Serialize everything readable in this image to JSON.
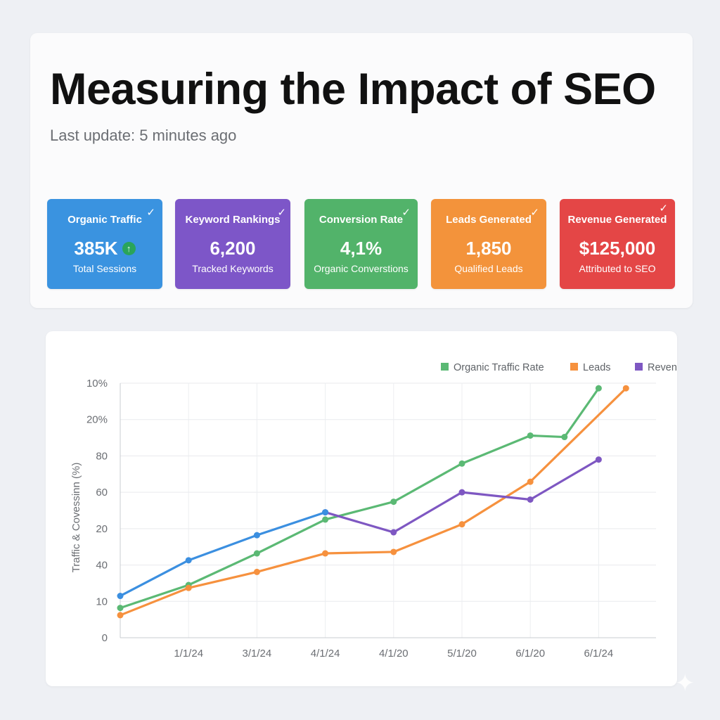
{
  "header": {
    "title": "Measuring the Impact of SEO",
    "last_update": "Last update: 5 minutes ago"
  },
  "kpis": [
    {
      "title": "Organic Traffic",
      "value": "385K",
      "sub": "Total Sessions",
      "color": "#3a93e0",
      "check": "✓",
      "trend_icon": "↑"
    },
    {
      "title": "Keyword Rankings",
      "value": "6,200",
      "sub": "Tracked Keywords",
      "color": "#7d56c8",
      "check": "✓"
    },
    {
      "title": "Conversion Rate",
      "value": "4,1%",
      "sub": "Organic Converstions",
      "color": "#52b36a",
      "check": "✓"
    },
    {
      "title": "Leads Generated",
      "value": "1,850",
      "sub": "Qualified Leads",
      "color": "#f3933b",
      "check": "✓"
    },
    {
      "title": "Revenue Generated",
      "value": "$125,000",
      "sub": "Attributed to SEO",
      "color": "#e44646",
      "check": "✓"
    }
  ],
  "chart_data": {
    "type": "line",
    "ylabel": "Traffic & Covessinn (%)",
    "y_tick_labels": [
      "0",
      "10",
      "40",
      "20",
      "60",
      "80",
      "20%",
      "10%"
    ],
    "x_tick_labels": [
      "1/1/24",
      "3/1/24",
      "4/1/24",
      "4/1/20",
      "5/1/20",
      "6/1/20",
      "6/1/24"
    ],
    "x_domain": [
      0,
      7.6
    ],
    "y_domain": [
      0,
      7
    ],
    "legend_position": "top-right",
    "grid": true,
    "series": [
      {
        "name": "Organic Traffic Rate",
        "color": "#5bb974",
        "x": [
          0,
          1,
          2,
          3,
          4,
          5,
          6,
          6.5,
          7
        ],
        "y": [
          0.82,
          1.45,
          2.32,
          3.25,
          3.74,
          4.79,
          5.56,
          5.52,
          6.86
        ]
      },
      {
        "name": "Leads",
        "color": "#f6913e",
        "x": [
          0,
          1,
          2,
          3,
          4,
          5,
          6,
          7.4
        ],
        "y": [
          0.62,
          1.37,
          1.81,
          2.32,
          2.36,
          3.12,
          4.29,
          6.86
        ]
      },
      {
        "name": "Revenue",
        "color": "#7e57c2",
        "x": [
          3,
          4,
          5,
          6,
          7
        ],
        "y": [
          3.45,
          2.9,
          4.0,
          3.8,
          4.9
        ]
      },
      {
        "name": "Organic Traffic",
        "color": "#3b8fe0",
        "in_legend": false,
        "x": [
          0,
          1,
          2,
          3
        ],
        "y": [
          1.15,
          2.13,
          2.82,
          3.45
        ]
      }
    ]
  }
}
